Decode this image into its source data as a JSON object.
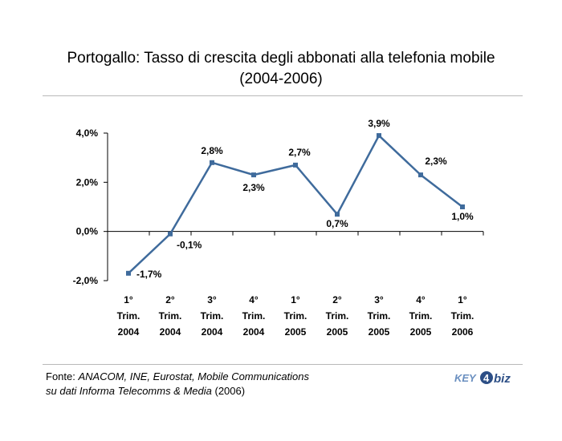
{
  "chart_data": {
    "type": "line",
    "title": "Portogallo: Tasso di crescita degli abbonati alla telefonia mobile",
    "subtitle": "(2004-2006)",
    "categories": [
      [
        "1°",
        "Trim.",
        "2004"
      ],
      [
        "2°",
        "Trim.",
        "2004"
      ],
      [
        "3°",
        "Trim.",
        "2004"
      ],
      [
        "4°",
        "Trim.",
        "2004"
      ],
      [
        "1°",
        "Trim.",
        "2005"
      ],
      [
        "2°",
        "Trim.",
        "2005"
      ],
      [
        "3°",
        "Trim.",
        "2005"
      ],
      [
        "4°",
        "Trim.",
        "2005"
      ],
      [
        "1°",
        "Trim.",
        "2006"
      ]
    ],
    "series": [
      {
        "values": [
          -1.7,
          -0.1,
          2.8,
          2.3,
          2.7,
          0.7,
          3.9,
          2.3,
          1.0
        ],
        "labels": [
          "-1,7%",
          "-0,1%",
          "2,8%",
          "2,3%",
          "2,7%",
          "0,7%",
          "3,9%",
          "2,3%",
          "1,0%"
        ]
      }
    ],
    "yticks": [
      4.0,
      2.0,
      0.0,
      -2.0
    ],
    "ytick_labels": [
      "4,0%",
      "2,0%",
      "0,0%",
      "-2,0%"
    ],
    "ylim": [
      -2.0,
      4.0
    ],
    "grid": false,
    "legend": "none",
    "line_color": "#3f6b9c"
  },
  "source": {
    "prefix": "Fonte: ",
    "italic1": "ANACOM, INE, Eurostat, Mobile Communications",
    "italic2": "su dati Informa Telecomms & Media",
    "suffix": " (2006)"
  },
  "logo": {
    "text1": "KEY",
    "text2": "4",
    "text3": "biz"
  }
}
